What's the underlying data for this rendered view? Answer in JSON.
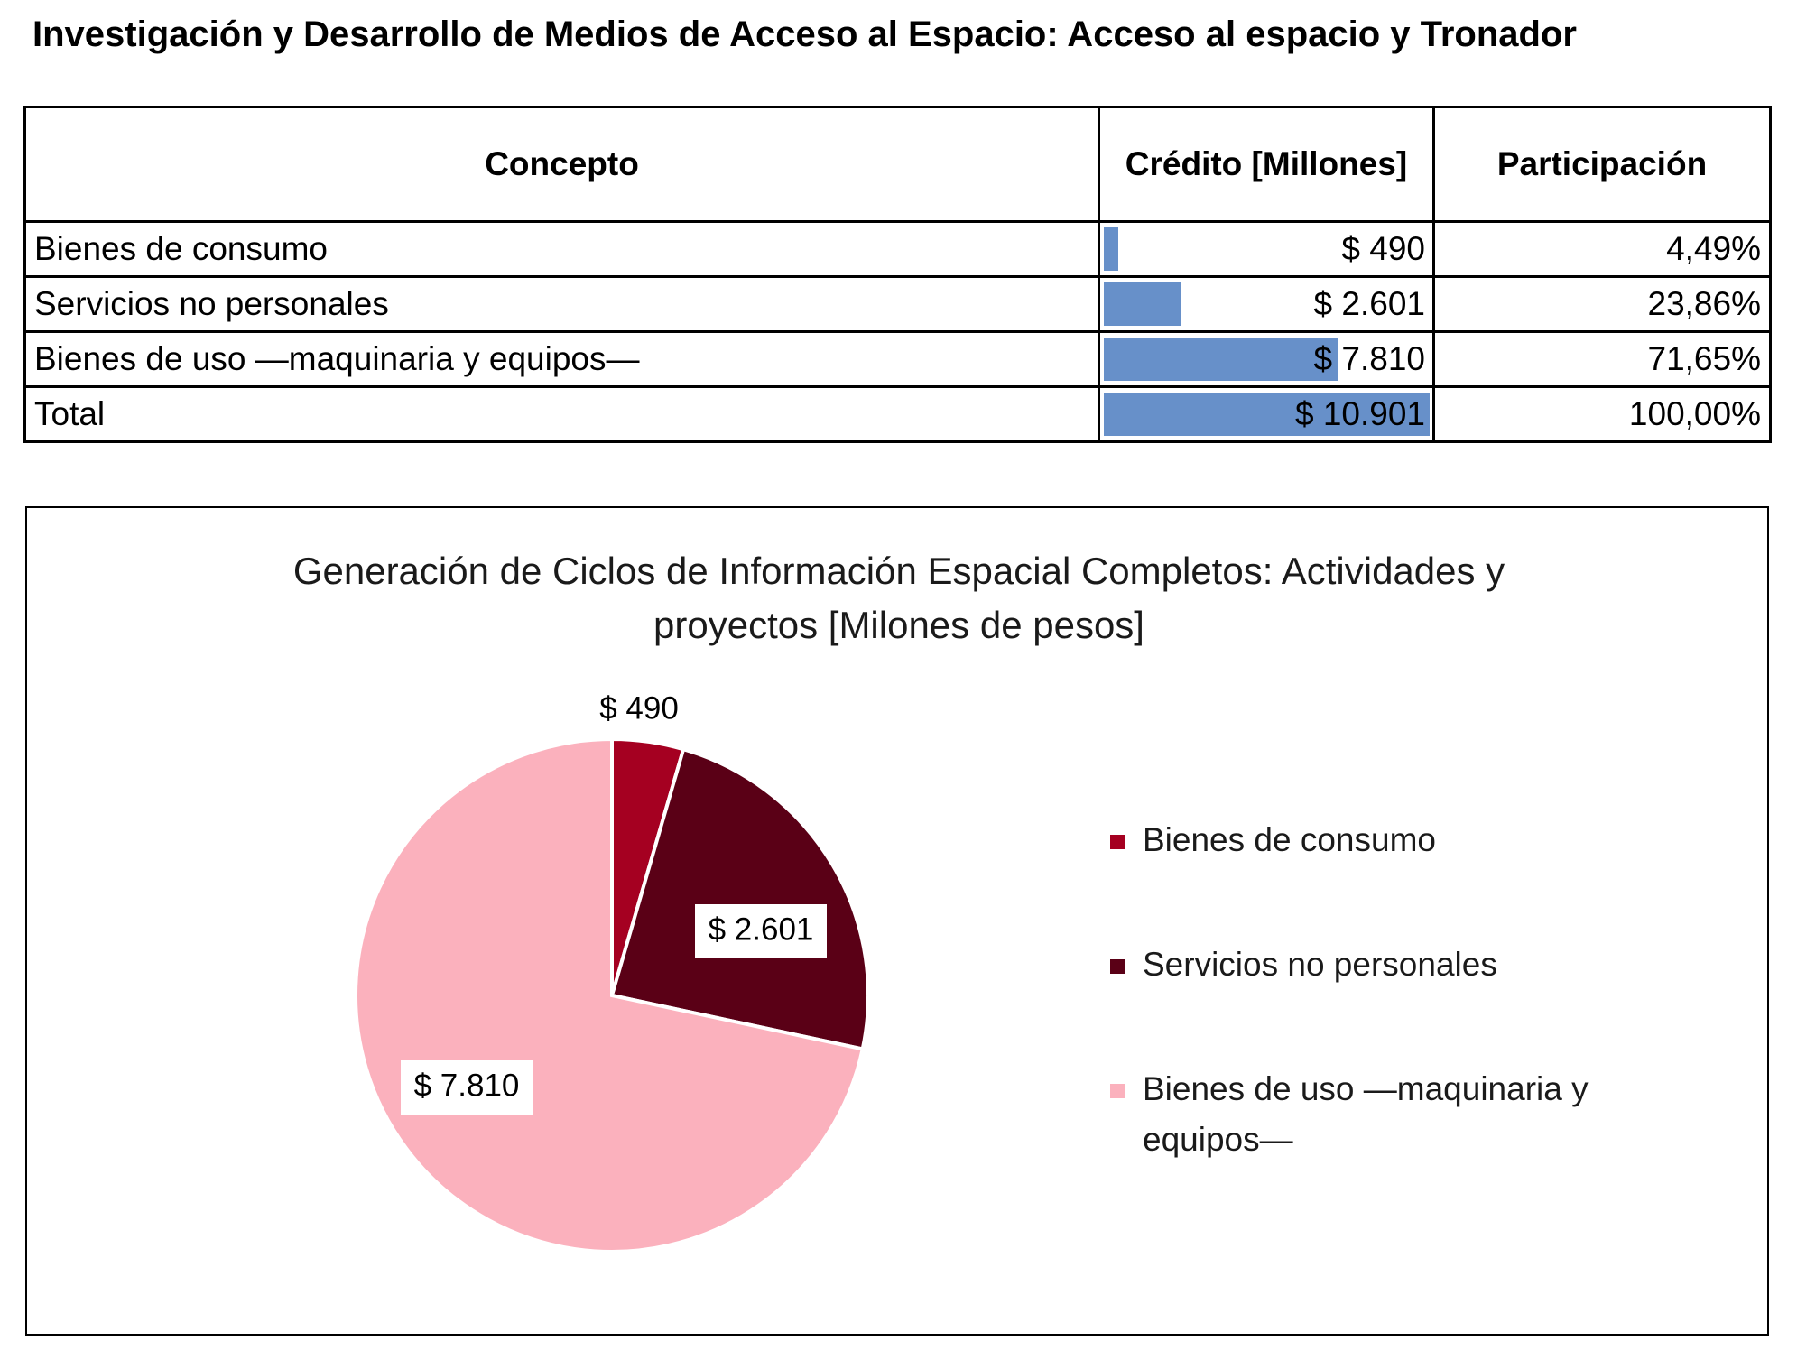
{
  "page": {
    "title": "Investigación y Desarrollo de Medios de Acceso al Espacio: Acceso al espacio y Tronador"
  },
  "table": {
    "headers": {
      "concepto": "Concepto",
      "credito": "Crédito [Millones]",
      "participacion": "Participación"
    },
    "rows": [
      {
        "concepto": "Bienes de consumo",
        "credito": "$ 490",
        "credito_value": 490,
        "participacion": "4,49%"
      },
      {
        "concepto": "Servicios no personales",
        "credito": "$ 2.601",
        "credito_value": 2601,
        "participacion": "23,86%"
      },
      {
        "concepto": "Bienes de uso —maquinaria y equipos—",
        "credito": "$ 7.810",
        "credito_value": 7810,
        "participacion": "71,65%"
      },
      {
        "concepto": "Total",
        "credito": "$ 10.901",
        "credito_value": 10901,
        "participacion": "100,00%"
      }
    ],
    "databar_color": "#6790c9"
  },
  "chart_data": {
    "type": "pie",
    "title_line1": "Generación de Ciclos de Información Espacial Completos: Actividades y",
    "title_line2": "proyectos [Milones de pesos]",
    "categories": [
      "Bienes de consumo",
      "Servicios no personales",
      "Bienes de uso —maquinaria y equipos—"
    ],
    "values": [
      490,
      2601,
      7810
    ],
    "data_labels": [
      "$ 490",
      "$ 2.601",
      "$ 7.810"
    ],
    "colors": [
      "#a50021",
      "#5a0016",
      "#fbb1bd"
    ],
    "legend": {
      "position": "right",
      "items": [
        {
          "label": "Bienes de consumo",
          "label_line1": "Bienes de consumo",
          "label_line2": ""
        },
        {
          "label": "Servicios no personales",
          "label_line1": "Servicios no personales",
          "label_line2": ""
        },
        {
          "label": "Bienes de uso —maquinaria y equipos—",
          "label_line1": "Bienes de uso —maquinaria y",
          "label_line2": "equipos—"
        }
      ]
    }
  }
}
